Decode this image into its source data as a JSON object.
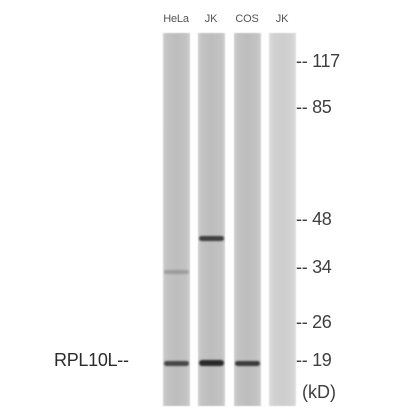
{
  "lanes": [
    {
      "label": "HeLa"
    },
    {
      "label": "JK"
    },
    {
      "label": "COS"
    },
    {
      "label": "JK"
    }
  ],
  "markers": [
    {
      "text": "-- 117"
    },
    {
      "text": "-- 85"
    },
    {
      "text": "-- 48"
    },
    {
      "text": "-- 34"
    },
    {
      "text": "-- 26"
    },
    {
      "text": "-- 19"
    }
  ],
  "protein_label": "RPL10L--",
  "unit_label": "(kD)",
  "colors": {
    "background": "#ffffff",
    "lane": "#bdbdbd",
    "band": "#3a3a3a",
    "text": "#3f3f3f"
  }
}
